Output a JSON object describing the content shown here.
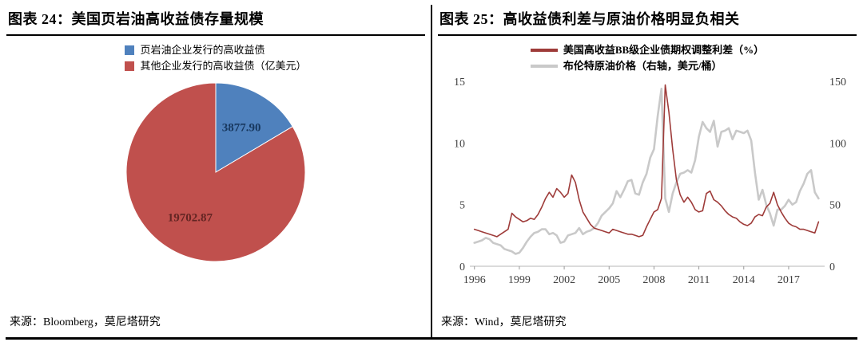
{
  "panels": {
    "left": {
      "title": "图表 24：美国页岩油高收益债存量规模",
      "source": "来源：Bloomberg，莫尼塔研究"
    },
    "right": {
      "title": "图表 25：高收益债利差与原油价格明显负相关",
      "source": "来源：Wind，莫尼塔研究"
    }
  },
  "colors": {
    "pie_blue": "#4f81bd",
    "pie_red": "#c0504d",
    "line_red": "#9e3b39",
    "line_gray": "#c9c9c9"
  },
  "chart_data": [
    {
      "type": "pie",
      "title": "美国页岩油高收益债存量规模",
      "unit": "亿美元",
      "legend_position": "top",
      "start_angle_deg": 0,
      "slices": [
        {
          "label": "页岩油企业发行的高收益债",
          "value": 3877.9,
          "value_label": "3877.90",
          "color": "#4f81bd",
          "value_label_color": "#17375e"
        },
        {
          "label": "其他企业发行的高收益债（亿美元）",
          "value": 19702.87,
          "value_label": "19702.87",
          "color": "#c0504d",
          "value_label_color": "#632523"
        }
      ]
    },
    {
      "type": "line",
      "title": "高收益债利差与原油价格明显负相关",
      "legend_position": "top",
      "grid": false,
      "x_range": [
        1995.8,
        2019.3
      ],
      "x_ticks": [
        1996,
        1999,
        2002,
        2005,
        2008,
        2011,
        2014,
        2017
      ],
      "left_axis": {
        "min": 0,
        "max": 15,
        "ticks": [
          0,
          5,
          10,
          15
        ]
      },
      "right_axis": {
        "min": 0,
        "max": 150,
        "ticks": [
          0,
          50,
          100,
          150
        ]
      },
      "x": [
        1996,
        1996.25,
        1996.5,
        1996.75,
        1997,
        1997.25,
        1997.5,
        1997.75,
        1998,
        1998.25,
        1998.5,
        1998.75,
        1999,
        1999.25,
        1999.5,
        1999.75,
        2000,
        2000.25,
        2000.5,
        2000.75,
        2001,
        2001.25,
        2001.5,
        2001.75,
        2002,
        2002.25,
        2002.5,
        2002.75,
        2003,
        2003.25,
        2003.5,
        2003.75,
        2004,
        2004.25,
        2004.5,
        2004.75,
        2005,
        2005.25,
        2005.5,
        2005.75,
        2006,
        2006.25,
        2006.5,
        2006.75,
        2007,
        2007.25,
        2007.5,
        2007.75,
        2008,
        2008.25,
        2008.5,
        2008.75,
        2009,
        2009.25,
        2009.5,
        2009.75,
        2010,
        2010.25,
        2010.5,
        2010.75,
        2011,
        2011.25,
        2011.5,
        2011.75,
        2012,
        2012.25,
        2012.5,
        2012.75,
        2013,
        2013.25,
        2013.5,
        2013.75,
        2014,
        2014.25,
        2014.5,
        2014.75,
        2015,
        2015.25,
        2015.5,
        2015.75,
        2016,
        2016.25,
        2016.5,
        2016.75,
        2017,
        2017.25,
        2017.5,
        2017.75,
        2018,
        2018.25,
        2018.5,
        2018.75,
        2019
      ],
      "series": [
        {
          "name": "美国高收益BB级企业债期权调整利差（%）",
          "axis": "left",
          "color": "#9e3b39",
          "width": 1.6,
          "values": [
            3.0,
            2.9,
            2.8,
            2.7,
            2.6,
            2.5,
            2.4,
            2.6,
            2.8,
            3.0,
            4.3,
            4.0,
            3.8,
            3.6,
            3.7,
            3.9,
            3.8,
            4.2,
            4.8,
            5.5,
            6.0,
            5.6,
            6.3,
            6.0,
            5.6,
            5.9,
            7.4,
            6.8,
            5.4,
            4.4,
            3.9,
            3.4,
            3.1,
            3.0,
            2.9,
            2.8,
            2.7,
            3.0,
            2.9,
            2.8,
            2.7,
            2.6,
            2.6,
            2.5,
            2.4,
            2.5,
            3.2,
            3.8,
            4.4,
            4.6,
            5.5,
            14.7,
            12.5,
            9.5,
            7.0,
            5.8,
            5.2,
            5.6,
            5.2,
            4.6,
            4.4,
            4.5,
            5.9,
            6.1,
            5.4,
            5.2,
            4.9,
            4.5,
            4.2,
            4.0,
            3.9,
            3.6,
            3.4,
            3.3,
            3.5,
            4.0,
            4.2,
            4.1,
            4.8,
            5.1,
            6.0,
            5.0,
            4.4,
            3.9,
            3.5,
            3.3,
            3.2,
            3.0,
            3.0,
            2.9,
            2.8,
            2.7,
            3.6
          ]
        },
        {
          "name": "布伦特原油价格（右轴，美元/桶）",
          "axis": "right",
          "color": "#c9c9c9",
          "width": 2.6,
          "values": [
            19,
            20,
            21,
            23,
            22,
            19,
            18,
            17,
            14,
            13,
            12,
            10,
            11,
            15,
            20,
            24,
            27,
            28,
            30,
            30,
            26,
            27,
            25,
            19,
            20,
            25,
            26,
            27,
            31,
            26,
            28,
            29,
            31,
            35,
            41,
            44,
            47,
            51,
            61,
            56,
            62,
            69,
            70,
            59,
            58,
            68,
            75,
            88,
            95,
            122,
            144,
            55,
            44,
            59,
            68,
            75,
            76,
            78,
            76,
            86,
            105,
            117,
            112,
            109,
            118,
            97,
            109,
            110,
            112,
            103,
            110,
            109,
            108,
            110,
            102,
            76,
            54,
            62,
            50,
            43,
            33,
            46,
            46,
            49,
            54,
            50,
            52,
            61,
            67,
            75,
            78,
            60,
            55
          ]
        }
      ]
    }
  ]
}
